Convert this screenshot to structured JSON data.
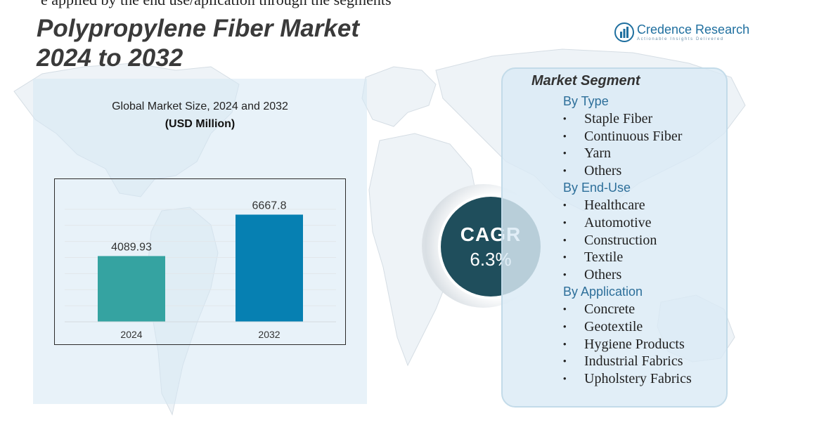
{
  "header": {
    "top_cut_text": "e applied by the end use/aplication through the segments",
    "title_line1": "Polypropylene Fiber Market",
    "title_line2": "2024 to 2032"
  },
  "logo": {
    "name": "Credence Research",
    "tagline": "Actionable Insights Delivered",
    "icon": "bar-chart-logo-icon"
  },
  "chart_data": {
    "type": "bar",
    "title": "Global Market Size, 2024 and 2032",
    "unit_label": "(USD Million)",
    "categories": [
      "2024",
      "2032"
    ],
    "values": [
      4089.93,
      6667.8
    ],
    "value_labels": [
      "4089.93",
      "6667.8"
    ],
    "colors": [
      "#35a3a1",
      "#0680b2"
    ],
    "ylim": [
      0,
      8000
    ],
    "grid": true,
    "legend": "none"
  },
  "cagr": {
    "label": "CAGR",
    "value": "6.3%"
  },
  "segments": {
    "title": "Market Segment",
    "groups": [
      {
        "title": "By Type",
        "items": [
          "Staple Fiber",
          "Continuous Fiber",
          "Yarn",
          "Others"
        ]
      },
      {
        "title": "By End-Use",
        "items": [
          "Healthcare",
          "Automotive",
          "Construction",
          "Textile",
          "Others"
        ]
      },
      {
        "title": "By Application",
        "items": [
          "Concrete",
          "Geotextile",
          "Hygiene Products",
          "Industrial Fabrics",
          "Upholstery Fabrics"
        ]
      }
    ]
  },
  "colors": {
    "title": "#3a3a3a",
    "accent": "#2d6f9a",
    "cagr_circle": "#1f4e5c",
    "panel_bg": "#dceaf4"
  }
}
